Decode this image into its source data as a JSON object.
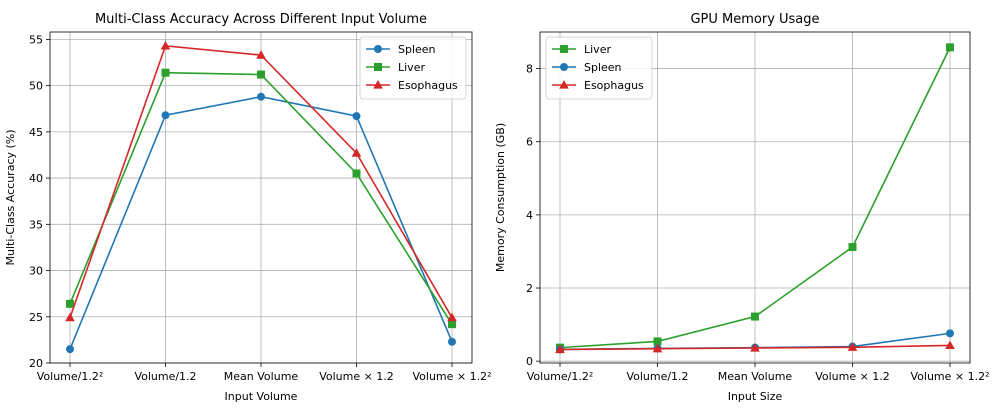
{
  "chart_data": [
    {
      "type": "line",
      "title": "Multi-Class Accuracy Across Different Input Volume",
      "xlabel": "Input Volume",
      "ylabel": "Multi-Class Accuracy (%)",
      "categories": [
        "Volume/1.2²",
        "Volume/1.2",
        "Mean Volume",
        "Volume × 1.2",
        "Volume × 1.2²"
      ],
      "ylim": [
        20,
        55.8
      ],
      "yticks": [
        20,
        25,
        30,
        35,
        40,
        45,
        50,
        55
      ],
      "grid": true,
      "legend_position": "top-right",
      "series": [
        {
          "name": "Spleen",
          "color": "#1f77b4",
          "marker": "circle",
          "values": [
            21.5,
            46.8,
            48.8,
            46.7,
            22.3
          ]
        },
        {
          "name": "Liver",
          "color": "#2ca02c",
          "marker": "square",
          "values": [
            26.4,
            51.4,
            51.2,
            40.5,
            24.2
          ]
        },
        {
          "name": "Esophagus",
          "color": "#d62728",
          "marker": "triangle",
          "values": [
            24.9,
            54.3,
            53.3,
            42.7,
            24.9
          ]
        }
      ]
    },
    {
      "type": "line",
      "title": "GPU Memory Usage",
      "xlabel": "Input Size",
      "ylabel": "Memory Consumption (GB)",
      "categories": [
        "Volume/1.2²",
        "Volume/1.2",
        "Mean Volume",
        "Volume × 1.2",
        "Volume × 1.2²"
      ],
      "ylim": [
        -0.05,
        9.0
      ],
      "yticks": [
        0,
        2,
        4,
        6,
        8
      ],
      "grid": true,
      "legend_position": "top-left",
      "series": [
        {
          "name": "Liver",
          "color": "#2ca02c",
          "marker": "square",
          "values": [
            0.37,
            0.54,
            1.22,
            3.12,
            8.58
          ]
        },
        {
          "name": "Spleen",
          "color": "#1f77b4",
          "marker": "circle",
          "values": [
            0.32,
            0.35,
            0.37,
            0.4,
            0.76
          ]
        },
        {
          "name": "Esophagus",
          "color": "#d62728",
          "marker": "triangle",
          "values": [
            0.32,
            0.34,
            0.36,
            0.38,
            0.43
          ]
        }
      ]
    }
  ]
}
